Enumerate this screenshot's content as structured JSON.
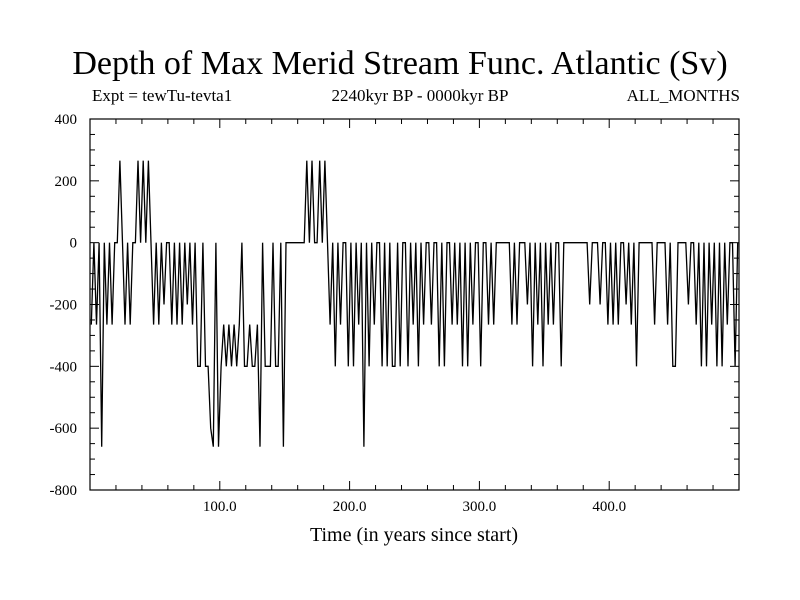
{
  "chart_data": {
    "type": "line",
    "title": "Depth of Max Merid Stream Func. Atlantic (Sv)",
    "subtitle_left": "Expt = tewTu-tevta1",
    "subtitle_center": "2240kyr BP - 0000kyr BP",
    "subtitle_right": "ALL_MONTHS",
    "xlabel": "Time (in years since start)",
    "ylabel": "",
    "xlim": [
      0,
      500
    ],
    "ylim": [
      -800,
      400
    ],
    "x_ticks": [
      100,
      200,
      300,
      400
    ],
    "x_tick_labels": [
      "100.0",
      "200.0",
      "300.0",
      "400.0"
    ],
    "y_ticks": [
      400,
      200,
      0,
      -200,
      -400,
      -600,
      -800
    ],
    "y_tick_labels": [
      "400",
      "200",
      "0",
      "-200",
      "-400",
      "-600",
      "-800"
    ],
    "grid": false,
    "legend": "none",
    "line_color": "#000000",
    "series": [
      {
        "values": [
          -265,
          0,
          -265,
          0,
          -660,
          0,
          -265,
          0,
          -265,
          0,
          0,
          265,
          0,
          -265,
          0,
          -265,
          0,
          0,
          265,
          0,
          265,
          0,
          265,
          0,
          -265,
          0,
          -265,
          0,
          -200,
          0,
          0,
          -265,
          0,
          -265,
          0,
          -265,
          0,
          -200,
          0,
          -265,
          0,
          -400,
          -400,
          0,
          -400,
          -400,
          -600,
          -660,
          0,
          -660,
          -400,
          -265,
          -400,
          -265,
          -400,
          -265,
          -400,
          -265,
          0,
          -400,
          -400,
          -265,
          -400,
          -400,
          -265,
          -660,
          0,
          -400,
          -400,
          -400,
          0,
          -400,
          -400,
          0,
          -660,
          0,
          0,
          0,
          0,
          0,
          0,
          0,
          0,
          265,
          0,
          265,
          0,
          0,
          265,
          0,
          265,
          0,
          -265,
          0,
          -400,
          0,
          -265,
          0,
          0,
          -400,
          0,
          -400,
          0,
          -265,
          0,
          -660,
          0,
          -400,
          0,
          -265,
          0,
          0,
          -400,
          0,
          -400,
          0,
          -400,
          -400,
          0,
          -400,
          0,
          0,
          -400,
          0,
          -265,
          0,
          -400,
          0,
          -265,
          0,
          0,
          -265,
          0,
          0,
          -400,
          0,
          -400,
          0,
          0,
          -265,
          0,
          -265,
          0,
          -400,
          0,
          -400,
          0,
          -265,
          0,
          0,
          -400,
          0,
          0,
          -265,
          0,
          -265,
          0,
          0,
          0,
          0,
          0,
          0,
          -265,
          0,
          -265,
          0,
          0,
          0,
          -200,
          0,
          -400,
          0,
          -265,
          0,
          -400,
          0,
          -265,
          0,
          -265,
          0,
          0,
          -400,
          0,
          0,
          0,
          0,
          0,
          0,
          0,
          0,
          0,
          0,
          -200,
          0,
          0,
          0,
          -200,
          0,
          0,
          -265,
          0,
          -265,
          0,
          -265,
          0,
          0,
          -200,
          0,
          -265,
          0,
          -400,
          0,
          0,
          0,
          0,
          0,
          0,
          -265,
          0,
          0,
          0,
          0,
          -265,
          0,
          -400,
          -400,
          0,
          0,
          0,
          0,
          -200,
          0,
          0,
          -265,
          0,
          -400,
          0,
          -400,
          0,
          -265,
          0,
          -400,
          0,
          -400,
          0,
          -265,
          0,
          0,
          -400,
          0
        ]
      }
    ]
  }
}
